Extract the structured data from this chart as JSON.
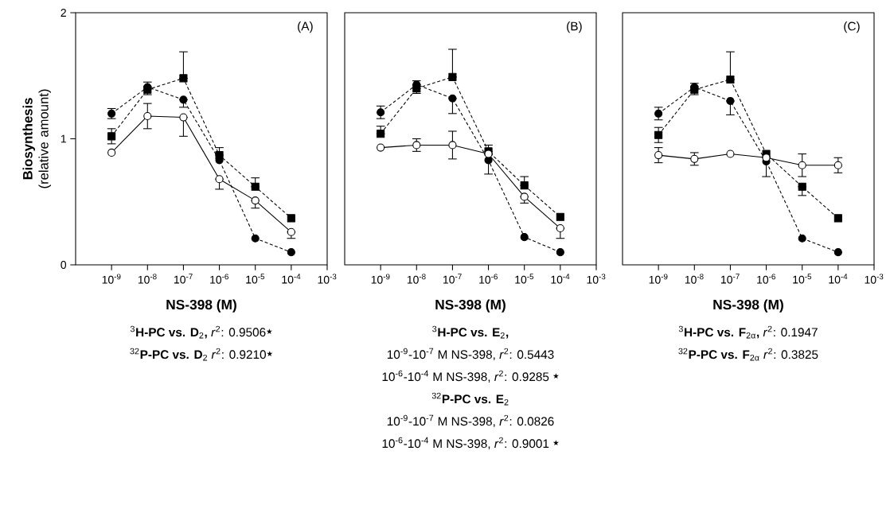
{
  "chart_data": [
    {
      "type": "line",
      "title": "(A)",
      "xlabel": "NS-398 (M)",
      "ylabel": "**Biosynthesis** (relative amount)",
      "log": "x",
      "x": [
        1e-09,
        1e-08,
        1e-07,
        1e-06,
        1e-05,
        0.0001
      ],
      "xlim": [
        1e-10,
        0.001
      ],
      "xticks": [
        {
          "value": 1e-09,
          "label": "10$^{-9}$"
        },
        {
          "value": 1e-08,
          "label": "10$^{-8}$"
        },
        {
          "value": 1e-07,
          "label": "10$^{-7}$"
        },
        {
          "value": 1e-06,
          "label": "10$^{-6}$"
        },
        {
          "value": 1e-05,
          "label": "10$^{-5}$"
        },
        {
          "value": 0.0001,
          "label": "10$^{-4}$"
        },
        {
          "value": 0.001,
          "label": "10$^{-3}$"
        }
      ],
      "ylim": [
        0,
        2
      ],
      "yticks": [
        0,
        1,
        2
      ],
      "series": [
        {
          "color": "#000000",
          "marker": "circle",
          "line_style": "dashed",
          "values": [
            1.2,
            1.41,
            1.31,
            0.83,
            0.21,
            0.1
          ],
          "errors": [
            0.04,
            [
              1.41,
              1.45
            ],
            [
              1.25,
              1.31
            ],
            null,
            null,
            null
          ]
        },
        {
          "color": "#000000",
          "marker": "square",
          "line_style": "dashed",
          "values": [
            1.02,
            1.39,
            1.48,
            0.87,
            0.62,
            0.37
          ],
          "errors": [
            0.06,
            [
              1.35,
              1.39
            ],
            [
              1.48,
              1.69
            ],
            [
              0.87,
              0.93
            ],
            [
              0.62,
              0.69
            ],
            null
          ]
        },
        {
          "color": "#ffffff",
          "marker": "circle",
          "line_style": "solid",
          "values": [
            0.89,
            1.18,
            1.17,
            0.68,
            0.51,
            0.26
          ],
          "errors": [
            null,
            0.1,
            [
              1.02,
              1.17
            ],
            [
              0.6,
              0.68
            ],
            [
              0.45,
              0.51
            ],
            [
              0.21,
              0.26
            ]
          ]
        }
      ],
      "annotations": [
        "$^{3}$**H-PC vs. D**$_{2}$**,**  *r*$^{2}$: 0.9506★",
        "$^{32}$**P-PC vs. D**$_{2}$  *r*$^{2}$: 0.9210★"
      ]
    },
    {
      "type": "line",
      "title": "(B)",
      "xlabel": "NS-398 (M)",
      "log": "x",
      "tick_labels": "x",
      "x": [
        1e-09,
        1e-08,
        1e-07,
        1e-06,
        1e-05,
        0.0001
      ],
      "xlim": [
        1e-10,
        0.001
      ],
      "xticks": [
        {
          "value": 1e-09,
          "label": "10$^{-9}$"
        },
        {
          "value": 1e-08,
          "label": "10$^{-8}$"
        },
        {
          "value": 1e-07,
          "label": "10$^{-7}$"
        },
        {
          "value": 1e-06,
          "label": "10$^{-6}$"
        },
        {
          "value": 1e-05,
          "label": "10$^{-5}$"
        },
        {
          "value": 0.0001,
          "label": "10$^{-4}$"
        },
        {
          "value": 0.001,
          "label": "10$^{-3}$"
        }
      ],
      "ylim": [
        0,
        2
      ],
      "series": [
        {
          "color": "#000000",
          "marker": "circle",
          "line_style": "dashed",
          "values": [
            1.21,
            1.43,
            1.32,
            0.83,
            0.22,
            0.1
          ],
          "errors": [
            0.05,
            [
              1.43,
              1.46
            ],
            [
              1.2,
              1.32
            ],
            null,
            null,
            null
          ]
        },
        {
          "color": "#000000",
          "marker": "square",
          "line_style": "dashed",
          "values": [
            1.04,
            1.4,
            1.49,
            0.9,
            0.63,
            0.38
          ],
          "errors": [
            [
              1.04,
              1.1
            ],
            [
              1.36,
              1.4
            ],
            [
              1.49,
              1.71
            ],
            [
              0.9,
              0.95
            ],
            [
              0.63,
              0.7
            ],
            null
          ]
        },
        {
          "color": "#ffffff",
          "marker": "circle",
          "line_style": "solid",
          "values": [
            0.93,
            0.95,
            0.95,
            0.88,
            0.54,
            0.29
          ],
          "errors": [
            null,
            0.05,
            0.11,
            [
              0.72,
              0.88
            ],
            [
              0.49,
              0.54
            ],
            [
              0.21,
              0.29
            ]
          ]
        }
      ],
      "annotations": [
        "$^{3}$**H-PC vs. E**$_{2}$**,**",
        "10$^{-9}$-10$^{-7}$ M NS-398, *r*$^{2}$: 0.5443",
        "10$^{-6}$-10$^{-4}$ M NS-398, *r*$^{2}$: 0.9285 ★",
        "$^{32}$**P-PC vs. E**$_{2}$",
        "10$^{-9}$-10$^{-7}$ M NS-398, *r*$^{2}$: 0.0826",
        "10$^{-6}$-10$^{-4}$ M NS-398, *r*$^{2}$: 0.9001 ★"
      ]
    },
    {
      "type": "line",
      "title": "(C)",
      "xlabel": "NS-398 (M)",
      "log": "x",
      "tick_labels": "x",
      "x": [
        1e-09,
        1e-08,
        1e-07,
        1e-06,
        1e-05,
        0.0001
      ],
      "xlim": [
        1e-10,
        0.001
      ],
      "xticks": [
        {
          "value": 1e-09,
          "label": "10$^{-9}$"
        },
        {
          "value": 1e-08,
          "label": "10$^{-8}$"
        },
        {
          "value": 1e-07,
          "label": "10$^{-7}$"
        },
        {
          "value": 1e-06,
          "label": "10$^{-6}$"
        },
        {
          "value": 1e-05,
          "label": "10$^{-5}$"
        },
        {
          "value": 0.0001,
          "label": "10$^{-4}$"
        },
        {
          "value": 0.001,
          "label": "10$^{-3}$"
        }
      ],
      "ylim": [
        0,
        2
      ],
      "series": [
        {
          "color": "#000000",
          "marker": "circle",
          "line_style": "dashed",
          "values": [
            1.2,
            1.41,
            1.3,
            0.82,
            0.21,
            0.1
          ],
          "errors": [
            0.05,
            [
              1.41,
              1.44
            ],
            [
              1.19,
              1.3
            ],
            null,
            null,
            null
          ]
        },
        {
          "color": "#000000",
          "marker": "square",
          "line_style": "dashed",
          "values": [
            1.03,
            1.39,
            1.47,
            0.88,
            0.62,
            0.37
          ],
          "errors": [
            0.06,
            [
              1.35,
              1.39
            ],
            [
              1.47,
              1.69
            ],
            null,
            [
              0.55,
              0.62
            ],
            null
          ]
        },
        {
          "color": "#ffffff",
          "marker": "circle",
          "line_style": "solid",
          "values": [
            0.87,
            0.84,
            0.88,
            0.85,
            0.79,
            0.79
          ],
          "errors": [
            0.06,
            0.05,
            null,
            [
              0.7,
              0.85
            ],
            0.09,
            0.06
          ]
        }
      ],
      "annotations": [
        "$^{3}$**H-PC vs. F**$_{2α}$**,**  *r*$^{2}$: 0.1947",
        "$^{32}$**P-PC vs. F**$_{2α}$  *r*$^{2}$: 0.3825"
      ]
    }
  ]
}
